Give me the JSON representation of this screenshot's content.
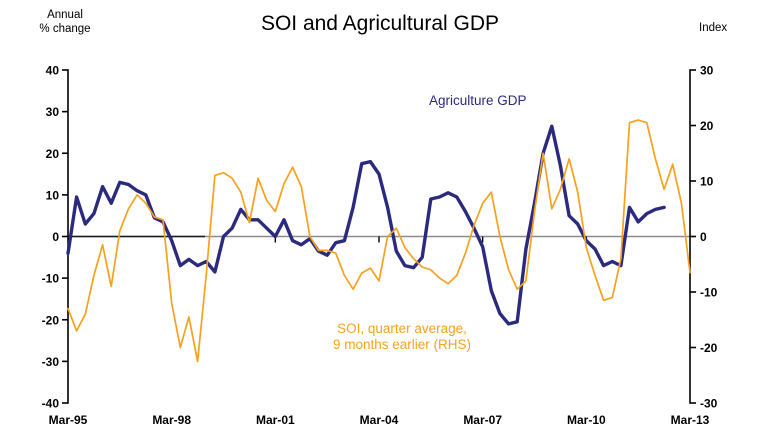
{
  "title": "SOI and Agricultural GDP",
  "left_axis_unit_line1": "Annual",
  "left_axis_unit_line2": "% change",
  "right_axis_unit": "Index",
  "annotations": {
    "agriculture": {
      "text": "Agriculture GDP",
      "color": "#2B2A7E"
    },
    "soi": {
      "line1": "SOI, quarter average,",
      "line2": "9 months earlier (RHS)",
      "color": "#F7A11C"
    }
  },
  "zero_line_color": "#8c8c8c",
  "zero_line_dark_color": "#1a1a1a",
  "axis_color": "#000000",
  "chart_data": {
    "type": "line",
    "title": "SOI and Agricultural GDP",
    "x_frequency": "quarterly",
    "x_start": "Mar-95",
    "x_end": "Mar-13",
    "x_tick_labels": [
      "Mar-95",
      "Mar-98",
      "Mar-01",
      "Mar-04",
      "Mar-07",
      "Mar-10",
      "Mar-13"
    ],
    "x_tick_indices": [
      0,
      12,
      24,
      36,
      48,
      60,
      72
    ],
    "left_axis": {
      "label": "Annual % change",
      "min": -40,
      "max": 40,
      "tick_step": 10
    },
    "right_axis": {
      "label": "Index",
      "min": -30,
      "max": 30,
      "tick_step": 10
    },
    "grid": false,
    "legend": "inline-annotations",
    "series": [
      {
        "name": "Agriculture GDP",
        "axis": "left",
        "color": "#2B2A7E",
        "line_width": 3.4,
        "values": [
          -4,
          9.5,
          3,
          5.5,
          12,
          8,
          13,
          12.5,
          11,
          10,
          4.5,
          3.5,
          -1,
          -7,
          -5.5,
          -7,
          -6,
          -8.5,
          0,
          2,
          6.5,
          4,
          4,
          2,
          0,
          4,
          -1,
          -2,
          -0.5,
          -3.5,
          -4.5,
          -1.5,
          -1,
          7,
          17.5,
          18,
          15,
          7,
          -3.5,
          -7,
          -7.5,
          -5,
          9,
          9.5,
          10.5,
          9.5,
          6,
          2,
          -2.5,
          -13,
          -18.5,
          -21,
          -20.5,
          -3,
          8,
          20,
          26.5,
          17,
          5,
          3,
          -1,
          -3,
          -7,
          -6,
          -7,
          7,
          3.5,
          5.5,
          6.5,
          7,
          null,
          null,
          null
        ]
      },
      {
        "name": "SOI, quarter average, 9 months earlier (RHS)",
        "axis": "right",
        "color": "#F7A11C",
        "line_width": 1.7,
        "values": [
          -13,
          -17,
          -14,
          -7,
          -1.5,
          -9,
          1,
          5,
          7.5,
          6,
          3.5,
          3,
          -12,
          -20,
          -14.5,
          -22.5,
          -7,
          11,
          11.5,
          10.5,
          8,
          2.5,
          10.5,
          6.5,
          4.5,
          9.5,
          12.5,
          9,
          0,
          -2.5,
          -2.5,
          -3,
          -7,
          -9.5,
          -6.6,
          -5.7,
          -8,
          0,
          1.5,
          -2,
          -4,
          -5.5,
          -6,
          -7.5,
          -8.5,
          -7,
          -3,
          2,
          6,
          8,
          0,
          -6,
          -9.5,
          -8,
          4.5,
          15,
          5,
          8.5,
          14,
          8,
          -2,
          -7,
          -11.5,
          -11,
          -4,
          20.5,
          21,
          20.5,
          14,
          8.5,
          13,
          6,
          -6.5
        ]
      }
    ]
  }
}
